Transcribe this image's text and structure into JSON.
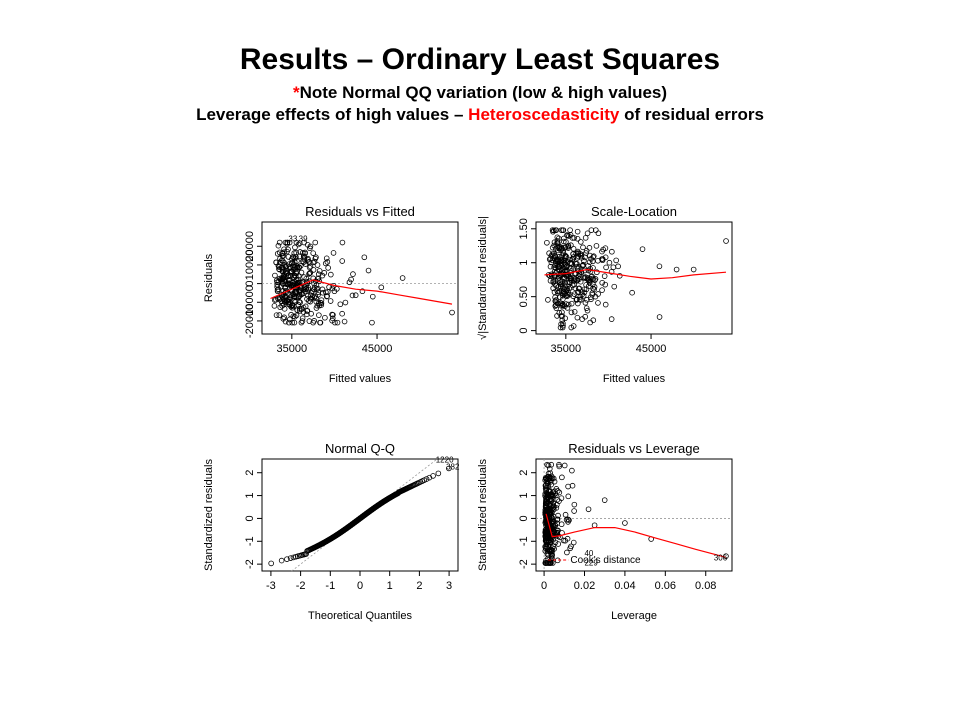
{
  "slide": {
    "title": "Results – Ordinary Least Squares",
    "note_star": "*",
    "note_text": "Note  Normal QQ variation (low & high values)",
    "line2_a": "Leverage effects of high values – ",
    "line2_red": "Heteroscedasticity",
    "line2_b": " of residual errors",
    "accent_color": "#ff0000"
  },
  "chart_data": [
    {
      "type": "scatter",
      "title": "Residuals vs Fitted",
      "xlabel": "Fitted values",
      "ylabel": "Residuals",
      "xlim": [
        31500,
        54500
      ],
      "ylim": [
        -27000,
        33000
      ],
      "xticks": [
        35000,
        45000
      ],
      "yticks": [
        -20000,
        -10000,
        0,
        10000,
        20000
      ],
      "reference_line": 0,
      "smoother": {
        "x": [
          32500,
          35000,
          37500,
          40000,
          42500,
          45000,
          47500,
          50000,
          53800
        ],
        "y": [
          -8000,
          -3000,
          2000,
          -1000,
          -3000,
          -4000,
          -6000,
          -8000,
          -11000
        ]
      },
      "point_labels": [
        {
          "text": "33",
          "x": 34600,
          "y": 22500
        },
        {
          "text": "39",
          "x": 35800,
          "y": 22500
        }
      ],
      "point_cloud": {
        "n": 380,
        "x_center": 37500,
        "x_spread": 3500,
        "y_spread": 11000
      },
      "outliers": [
        {
          "x": 44000,
          "y": 7000
        },
        {
          "x": 45500,
          "y": -2000
        },
        {
          "x": 48000,
          "y": 3000
        },
        {
          "x": 53800,
          "y": -15500
        },
        {
          "x": 44500,
          "y": -7000
        }
      ],
      "point_color": "#000000",
      "smoother_color": "#ff0000"
    },
    {
      "type": "scatter",
      "title": "Scale-Location",
      "xlabel": "Fitted values",
      "ylabel": "√|Standardized residuals|",
      "xlim": [
        31500,
        54500
      ],
      "ylim": [
        -0.05,
        1.6
      ],
      "xticks": [
        35000,
        45000
      ],
      "yticks": [
        0.0,
        0.5,
        1.0,
        1.5
      ],
      "smoother": {
        "x": [
          32500,
          35000,
          37500,
          40000,
          42500,
          45000,
          47500,
          50000,
          53800
        ],
        "y": [
          0.82,
          0.84,
          0.9,
          0.85,
          0.8,
          0.76,
          0.78,
          0.82,
          0.86
        ]
      },
      "point_cloud": {
        "n": 380,
        "x_center": 37500,
        "x_spread": 3500,
        "y_spread": 0.35
      },
      "outliers": [
        {
          "x": 53800,
          "y": 1.32
        },
        {
          "x": 46000,
          "y": 0.2
        },
        {
          "x": 48000,
          "y": 0.9
        },
        {
          "x": 44000,
          "y": 1.2
        },
        {
          "x": 50000,
          "y": 0.9
        }
      ],
      "point_color": "#000000",
      "smoother_color": "#ff0000"
    },
    {
      "type": "scatter",
      "title": "Normal Q-Q",
      "xlabel": "Theoretical Quantiles",
      "ylabel": "Standardized residuals",
      "xlim": [
        -3.3,
        3.3
      ],
      "ylim": [
        -2.3,
        2.6
      ],
      "xticks": [
        -3,
        -2,
        -1,
        0,
        1,
        2,
        3
      ],
      "yticks": [
        -2,
        -1,
        0,
        1,
        2
      ],
      "reference_line": {
        "x1": -3.3,
        "y1": -3.3,
        "x2": 3.3,
        "y2": 3.3
      },
      "point_labels": [
        {
          "text": "1220",
          "x": 2.55,
          "y": 2.45
        },
        {
          "text": "382",
          "x": 2.9,
          "y": 2.15
        }
      ],
      "quantile_points": {
        "n": 360,
        "curve": "s-shaped"
      },
      "point_color": "#000000"
    },
    {
      "type": "scatter",
      "title": "Residuals vs Leverage",
      "xlabel": "Leverage",
      "ylabel": "Standardized residuals",
      "xlim": [
        -0.004,
        0.093
      ],
      "ylim": [
        -2.3,
        2.6
      ],
      "xticks": [
        0.0,
        0.02,
        0.04,
        0.06,
        0.08
      ],
      "yticks": [
        -2,
        -1,
        0,
        1,
        2
      ],
      "reference_line": 0,
      "smoother": {
        "x": [
          0.001,
          0.004,
          0.008,
          0.015,
          0.025,
          0.035,
          0.045,
          0.055,
          0.065,
          0.075,
          0.09
        ],
        "y": [
          0.2,
          -0.8,
          -0.75,
          -0.6,
          -0.4,
          -0.4,
          -0.6,
          -0.85,
          -1.1,
          -1.35,
          -1.7
        ]
      },
      "legend_text": "Cook's distance",
      "point_labels": [
        {
          "text": "40",
          "x": 0.02,
          "y": -1.65
        },
        {
          "text": "229",
          "x": 0.02,
          "y": -2.05
        },
        {
          "text": "306",
          "x": 0.084,
          "y": -1.85
        }
      ],
      "outliers": [
        {
          "x": 0.09,
          "y": -1.65
        },
        {
          "x": 0.053,
          "y": -0.9
        },
        {
          "x": 0.04,
          "y": -0.2
        },
        {
          "x": 0.03,
          "y": 0.8
        },
        {
          "x": 0.025,
          "y": -0.3
        },
        {
          "x": 0.022,
          "y": 0.4
        }
      ],
      "point_color": "#000000",
      "smoother_color": "#ff0000"
    }
  ]
}
